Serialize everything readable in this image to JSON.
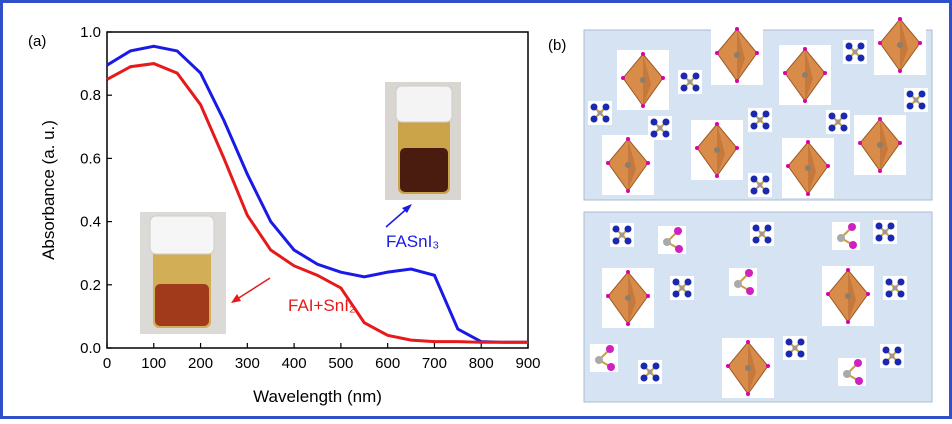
{
  "panels": [
    "(a)",
    "(b)"
  ],
  "chart_data": {
    "type": "line",
    "x_label": "Wavelength (nm)",
    "y_label": "Absorbance (a. u.)",
    "x": [
      0,
      50,
      100,
      150,
      200,
      250,
      300,
      350,
      400,
      450,
      500,
      550,
      600,
      650,
      700,
      750,
      800,
      850,
      900
    ],
    "series": [
      {
        "name": "FASnI₃",
        "color": "#1a1ae6",
        "values": [
          0.895,
          0.94,
          0.955,
          0.94,
          0.87,
          0.72,
          0.55,
          0.4,
          0.31,
          0.265,
          0.24,
          0.225,
          0.24,
          0.25,
          0.23,
          0.06,
          0.02,
          0.018,
          0.018
        ]
      },
      {
        "name": "FAI+SnI₂",
        "color": "#e61a1a",
        "values": [
          0.85,
          0.89,
          0.9,
          0.87,
          0.77,
          0.6,
          0.42,
          0.31,
          0.26,
          0.23,
          0.19,
          0.08,
          0.04,
          0.025,
          0.02,
          0.02,
          0.018,
          0.018,
          0.018
        ]
      }
    ],
    "xlim": [
      0,
      900
    ],
    "xticks": [
      0,
      100,
      200,
      300,
      400,
      500,
      600,
      700,
      800,
      900
    ],
    "ylim": [
      0,
      1
    ],
    "yticks": [
      {
        "value": 0,
        "label": "0.0"
      },
      0.2,
      0.4,
      0.6,
      0.8,
      {
        "value": 1,
        "label": "1.0"
      }
    ]
  }
}
